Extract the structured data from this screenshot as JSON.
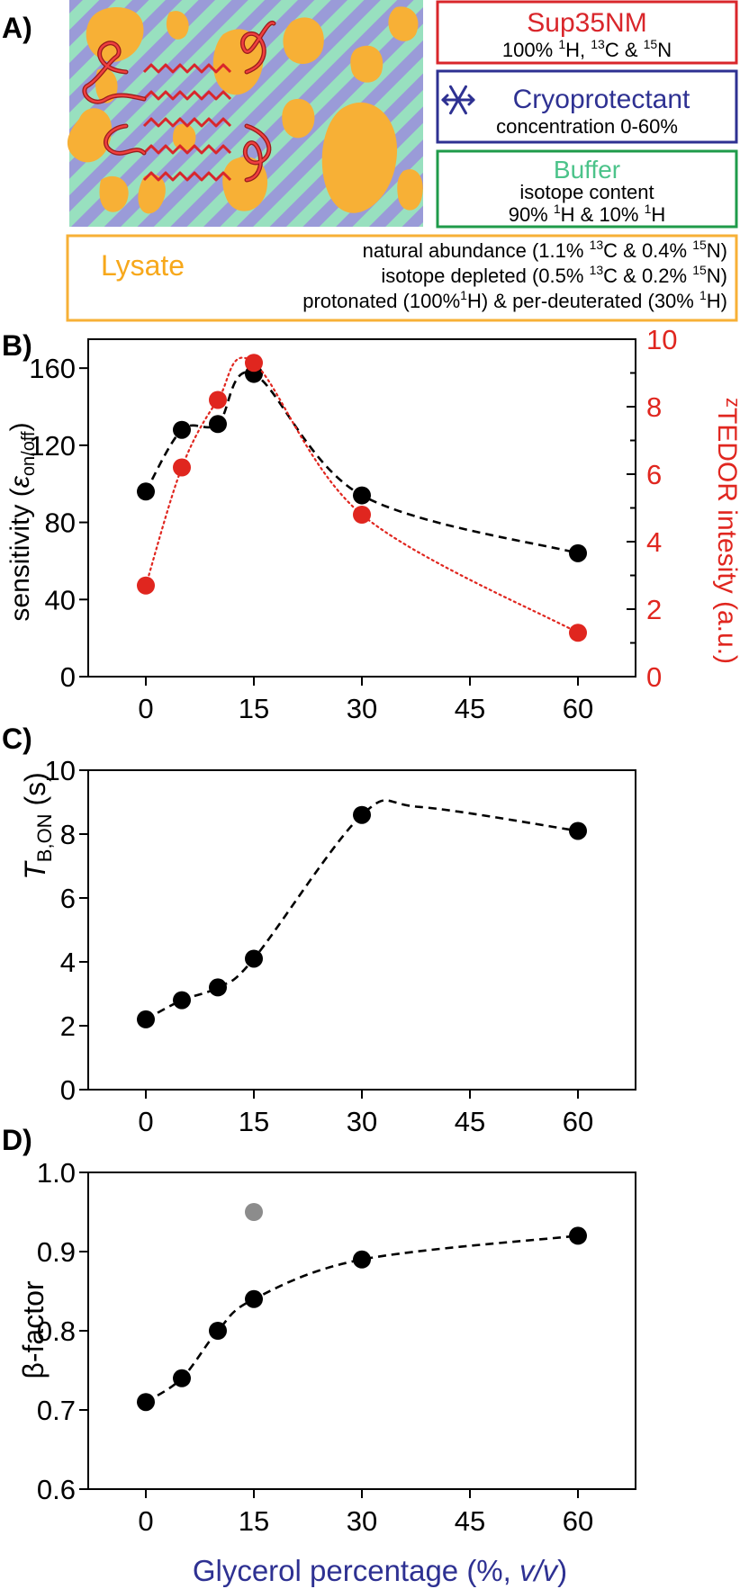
{
  "panel_labels": {
    "a": "A)",
    "b": "B)",
    "c": "C)",
    "d": "D)"
  },
  "legend": {
    "sup35": {
      "title": "Sup35NM",
      "line_pre": "100% ",
      "sup1": "1",
      "mid1": "H, ",
      "sup2": "13",
      "mid2": "C & ",
      "sup3": "15",
      "end": "N",
      "color": "#d9262b"
    },
    "cryo": {
      "title": "Cryoprotectant",
      "line": "concentration 0-60%",
      "color": "#2e3192",
      "icon": "snowflake-icon"
    },
    "buffer": {
      "title": "Buffer",
      "line1": "isotope content",
      "line2_pre": "90% ",
      "sup1": "1",
      "mid": "H & 10% ",
      "sup2": "1",
      "end": "H",
      "color": "#4cc38a"
    },
    "lysate": {
      "title": "Lysate",
      "color": "#f7a81b",
      "row1": {
        "pre": "natural abundance (1.1% ",
        "s1": "13",
        "m": "C & 0.4% ",
        "s2": "15",
        "end": "N)"
      },
      "row2": {
        "pre": "isotope depleted (0.5% ",
        "s1": "13",
        "m": "C & 0.2% ",
        "s2": "15",
        "end": "N)"
      },
      "row3": {
        "pre": "protonated (100%",
        "s1": "1",
        "m": "H) & per-deuterated (30% ",
        "s2": "1",
        "end": "H)"
      }
    }
  },
  "chart_data": [
    {
      "id": "B",
      "type": "line",
      "xlabel": "",
      "ylabel_text": "sensitivity (",
      "ylabel_symbol": "ε",
      "ylabel_sub": "on/off",
      "ylabel_close": ")",
      "y2label_pre": "z",
      "y2label_main": "TEDOR intesity (a.u.)",
      "xlim": [
        -8,
        68
      ],
      "ylim": [
        0,
        175
      ],
      "y2lim": [
        0,
        10
      ],
      "xticks": [
        0,
        15,
        30,
        45,
        60
      ],
      "yticks": [
        0,
        40,
        80,
        120,
        160
      ],
      "y2ticks": [
        0,
        2,
        4,
        6,
        8,
        10
      ],
      "series": [
        {
          "name": "sensitivity",
          "color": "#000000",
          "axis": "left",
          "style": "dashed",
          "x": [
            0,
            5,
            10,
            15,
            30,
            60
          ],
          "values": [
            96,
            128,
            131,
            157,
            94,
            64
          ]
        },
        {
          "name": "zTEDOR intensity",
          "color": "#e0261f",
          "axis": "right",
          "style": "dotted",
          "x": [
            0,
            5,
            10,
            15,
            30,
            60
          ],
          "values": [
            2.7,
            6.2,
            8.2,
            9.3,
            4.8,
            1.3
          ]
        }
      ]
    },
    {
      "id": "C",
      "type": "scatter",
      "xlabel": "",
      "ylabel_italic": "T",
      "ylabel_sub": "B,ON",
      "ylabel_rest": " (s)",
      "xlim": [
        -8,
        68
      ],
      "ylim": [
        0,
        10
      ],
      "xticks": [
        0,
        15,
        30,
        45,
        60
      ],
      "yticks": [
        0,
        2,
        4,
        6,
        8,
        10
      ],
      "series": [
        {
          "name": "TB,ON",
          "color": "#000000",
          "style": "dashed",
          "x": [
            0,
            5,
            10,
            15,
            30,
            60
          ],
          "values": [
            2.2,
            2.8,
            3.2,
            4.1,
            8.6,
            8.1
          ]
        }
      ]
    },
    {
      "id": "D",
      "type": "scatter",
      "xlabel_pre": "Glycerol percentage (%, ",
      "xlabel_italic": "v/v",
      "xlabel_close": ")",
      "xlabel_color": "#2e3192",
      "ylabel": "β-factor",
      "xlim": [
        -8,
        68
      ],
      "ylim": [
        0.6,
        1.0
      ],
      "xticks": [
        0,
        15,
        30,
        45,
        60
      ],
      "yticks": [
        0.6,
        0.7,
        0.8,
        0.9,
        1.0
      ],
      "series": [
        {
          "name": "beta-factor",
          "color": "#000000",
          "style": "dashed",
          "x": [
            0,
            5,
            10,
            15,
            30,
            60
          ],
          "values": [
            0.71,
            0.74,
            0.8,
            0.84,
            0.89,
            0.92
          ]
        },
        {
          "name": "outlier",
          "color": "#8c8c8c",
          "style": "none",
          "x": [
            15
          ],
          "values": [
            0.95
          ]
        }
      ]
    }
  ]
}
